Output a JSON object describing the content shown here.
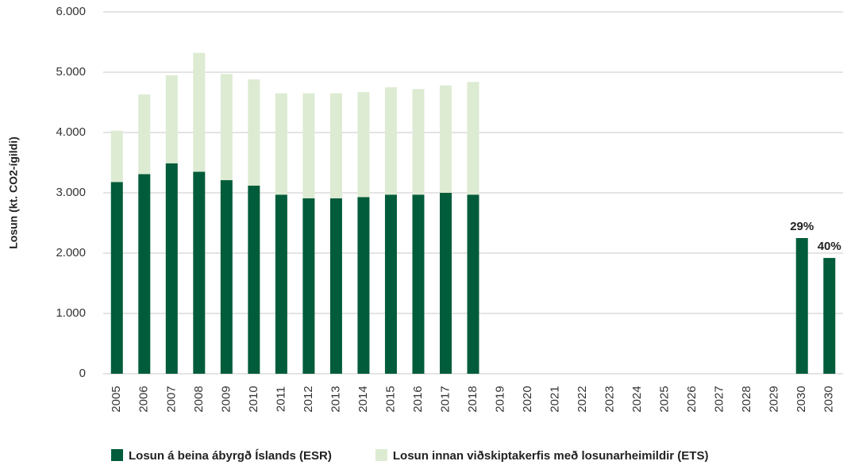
{
  "chart_data": {
    "type": "stacked_bar",
    "y_label": "Losun (kt. CO2-ígildi)",
    "categories": [
      "2005",
      "2006",
      "2007",
      "2008",
      "2009",
      "2010",
      "2011",
      "2012",
      "2013",
      "2014",
      "2015",
      "2016",
      "2017",
      "2018",
      "2019",
      "2020",
      "2021",
      "2022",
      "2023",
      "2024",
      "2025",
      "2026",
      "2027",
      "2028",
      "2029",
      "2030",
      "2030"
    ],
    "series": [
      {
        "name": "Losun á beina ábyrgð Íslands (ESR)",
        "color": "#005c3a",
        "values": [
          3180,
          3310,
          3490,
          3350,
          3210,
          3120,
          2970,
          2910,
          2910,
          2930,
          2970,
          2970,
          3000,
          2970,
          null,
          null,
          null,
          null,
          null,
          null,
          null,
          null,
          null,
          null,
          null,
          2250,
          1920
        ]
      },
      {
        "name": "Losun innan viðskiptakerfis með losunarheimildir (ETS)",
        "color": "#dcebd2",
        "values": [
          850,
          1320,
          1460,
          1970,
          1760,
          1760,
          1680,
          1740,
          1740,
          1740,
          1780,
          1750,
          1780,
          1870,
          null,
          null,
          null,
          null,
          null,
          null,
          null,
          null,
          null,
          null,
          null,
          null,
          null
        ]
      }
    ],
    "annotations": [
      {
        "text": "29%",
        "category_index": 25
      },
      {
        "text": "40%",
        "category_index": 26
      }
    ],
    "ylim": [
      0,
      6000
    ],
    "yticks": [
      0,
      {
        "value": 1000,
        "label": "1.000"
      },
      {
        "value": 2000,
        "label": "2.000"
      },
      {
        "value": 3000,
        "label": "3.000"
      },
      {
        "value": 4000,
        "label": "4.000"
      },
      {
        "value": 5000,
        "label": "5.000"
      },
      {
        "value": 6000,
        "label": "6.000"
      }
    ],
    "grid": true
  }
}
